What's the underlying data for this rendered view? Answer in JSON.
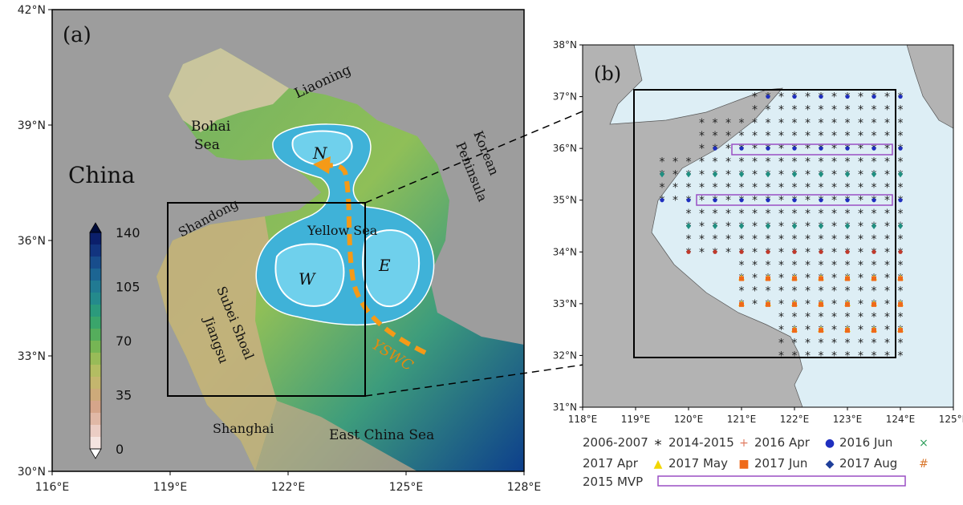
{
  "panel_a": {
    "label": "(a)",
    "lat_ticks": [
      "42°N",
      "39°N",
      "36°N",
      "33°N",
      "30°N"
    ],
    "lon_ticks": [
      "116°E",
      "119°E",
      "122°E",
      "125°E",
      "128°E"
    ],
    "places": {
      "liaoning": "Liaoning",
      "bohai_line1": "Bohai",
      "bohai_line2": "Sea",
      "china": "China",
      "korean": "Korean",
      "peninsula": "Peninsula",
      "shandong": "Shandong",
      "yellow_sea": "Yellow Sea",
      "subei_shoal": "Subei Shoal",
      "jiangsu": "Jiangsu",
      "shanghai": "Shanghai",
      "east_china_sea": "East China Sea",
      "yswc": "YSWC"
    },
    "regions": {
      "north": "N",
      "west": "W",
      "east": "E"
    },
    "colorbar": {
      "ticks": [
        "140",
        "105",
        "70",
        "35",
        "0"
      ],
      "min": 0,
      "max": 140
    },
    "colors": {
      "land": "#9d9d9d",
      "sea_region": "#3fb2d8",
      "current_arrow": "#f59a17",
      "yswc_text": "#e08a10"
    }
  },
  "panel_b": {
    "label": "(b)",
    "lat_ticks": [
      "38°N",
      "37°N",
      "36°N",
      "35°N",
      "34°N",
      "33°N",
      "32°N",
      "31°N"
    ],
    "lon_ticks": [
      "118°E",
      "119°E",
      "120°E",
      "121°E",
      "122°E",
      "123°E",
      "124°E",
      "125°E"
    ],
    "colors": {
      "sea": "#ddeef5",
      "land": "#b3b3b3",
      "mvp_box": "#9a4fc4"
    }
  },
  "legend": {
    "items": [
      {
        "label": "2006-2007",
        "symbol": "*",
        "color": "#222222"
      },
      {
        "label": "2014-2015",
        "symbol": "+",
        "color": "#e07a5f"
      },
      {
        "label": "2016 Apr",
        "symbol": "●",
        "color": "#1f2fbf"
      },
      {
        "label": "2016 Jun",
        "symbol": "×",
        "color": "#2e9e5b"
      },
      {
        "label": "2017 Apr",
        "symbol": "▲",
        "color": "#f2d600"
      },
      {
        "label": "2017 May",
        "symbol": "■",
        "color": "#ef6a1a"
      },
      {
        "label": "2017 Jun",
        "symbol": "◆",
        "color": "#1f3f9a"
      },
      {
        "label": "2017 Aug",
        "symbol": "#",
        "color": "#d9762b"
      }
    ],
    "mvp_label": "2015 MVP"
  }
}
